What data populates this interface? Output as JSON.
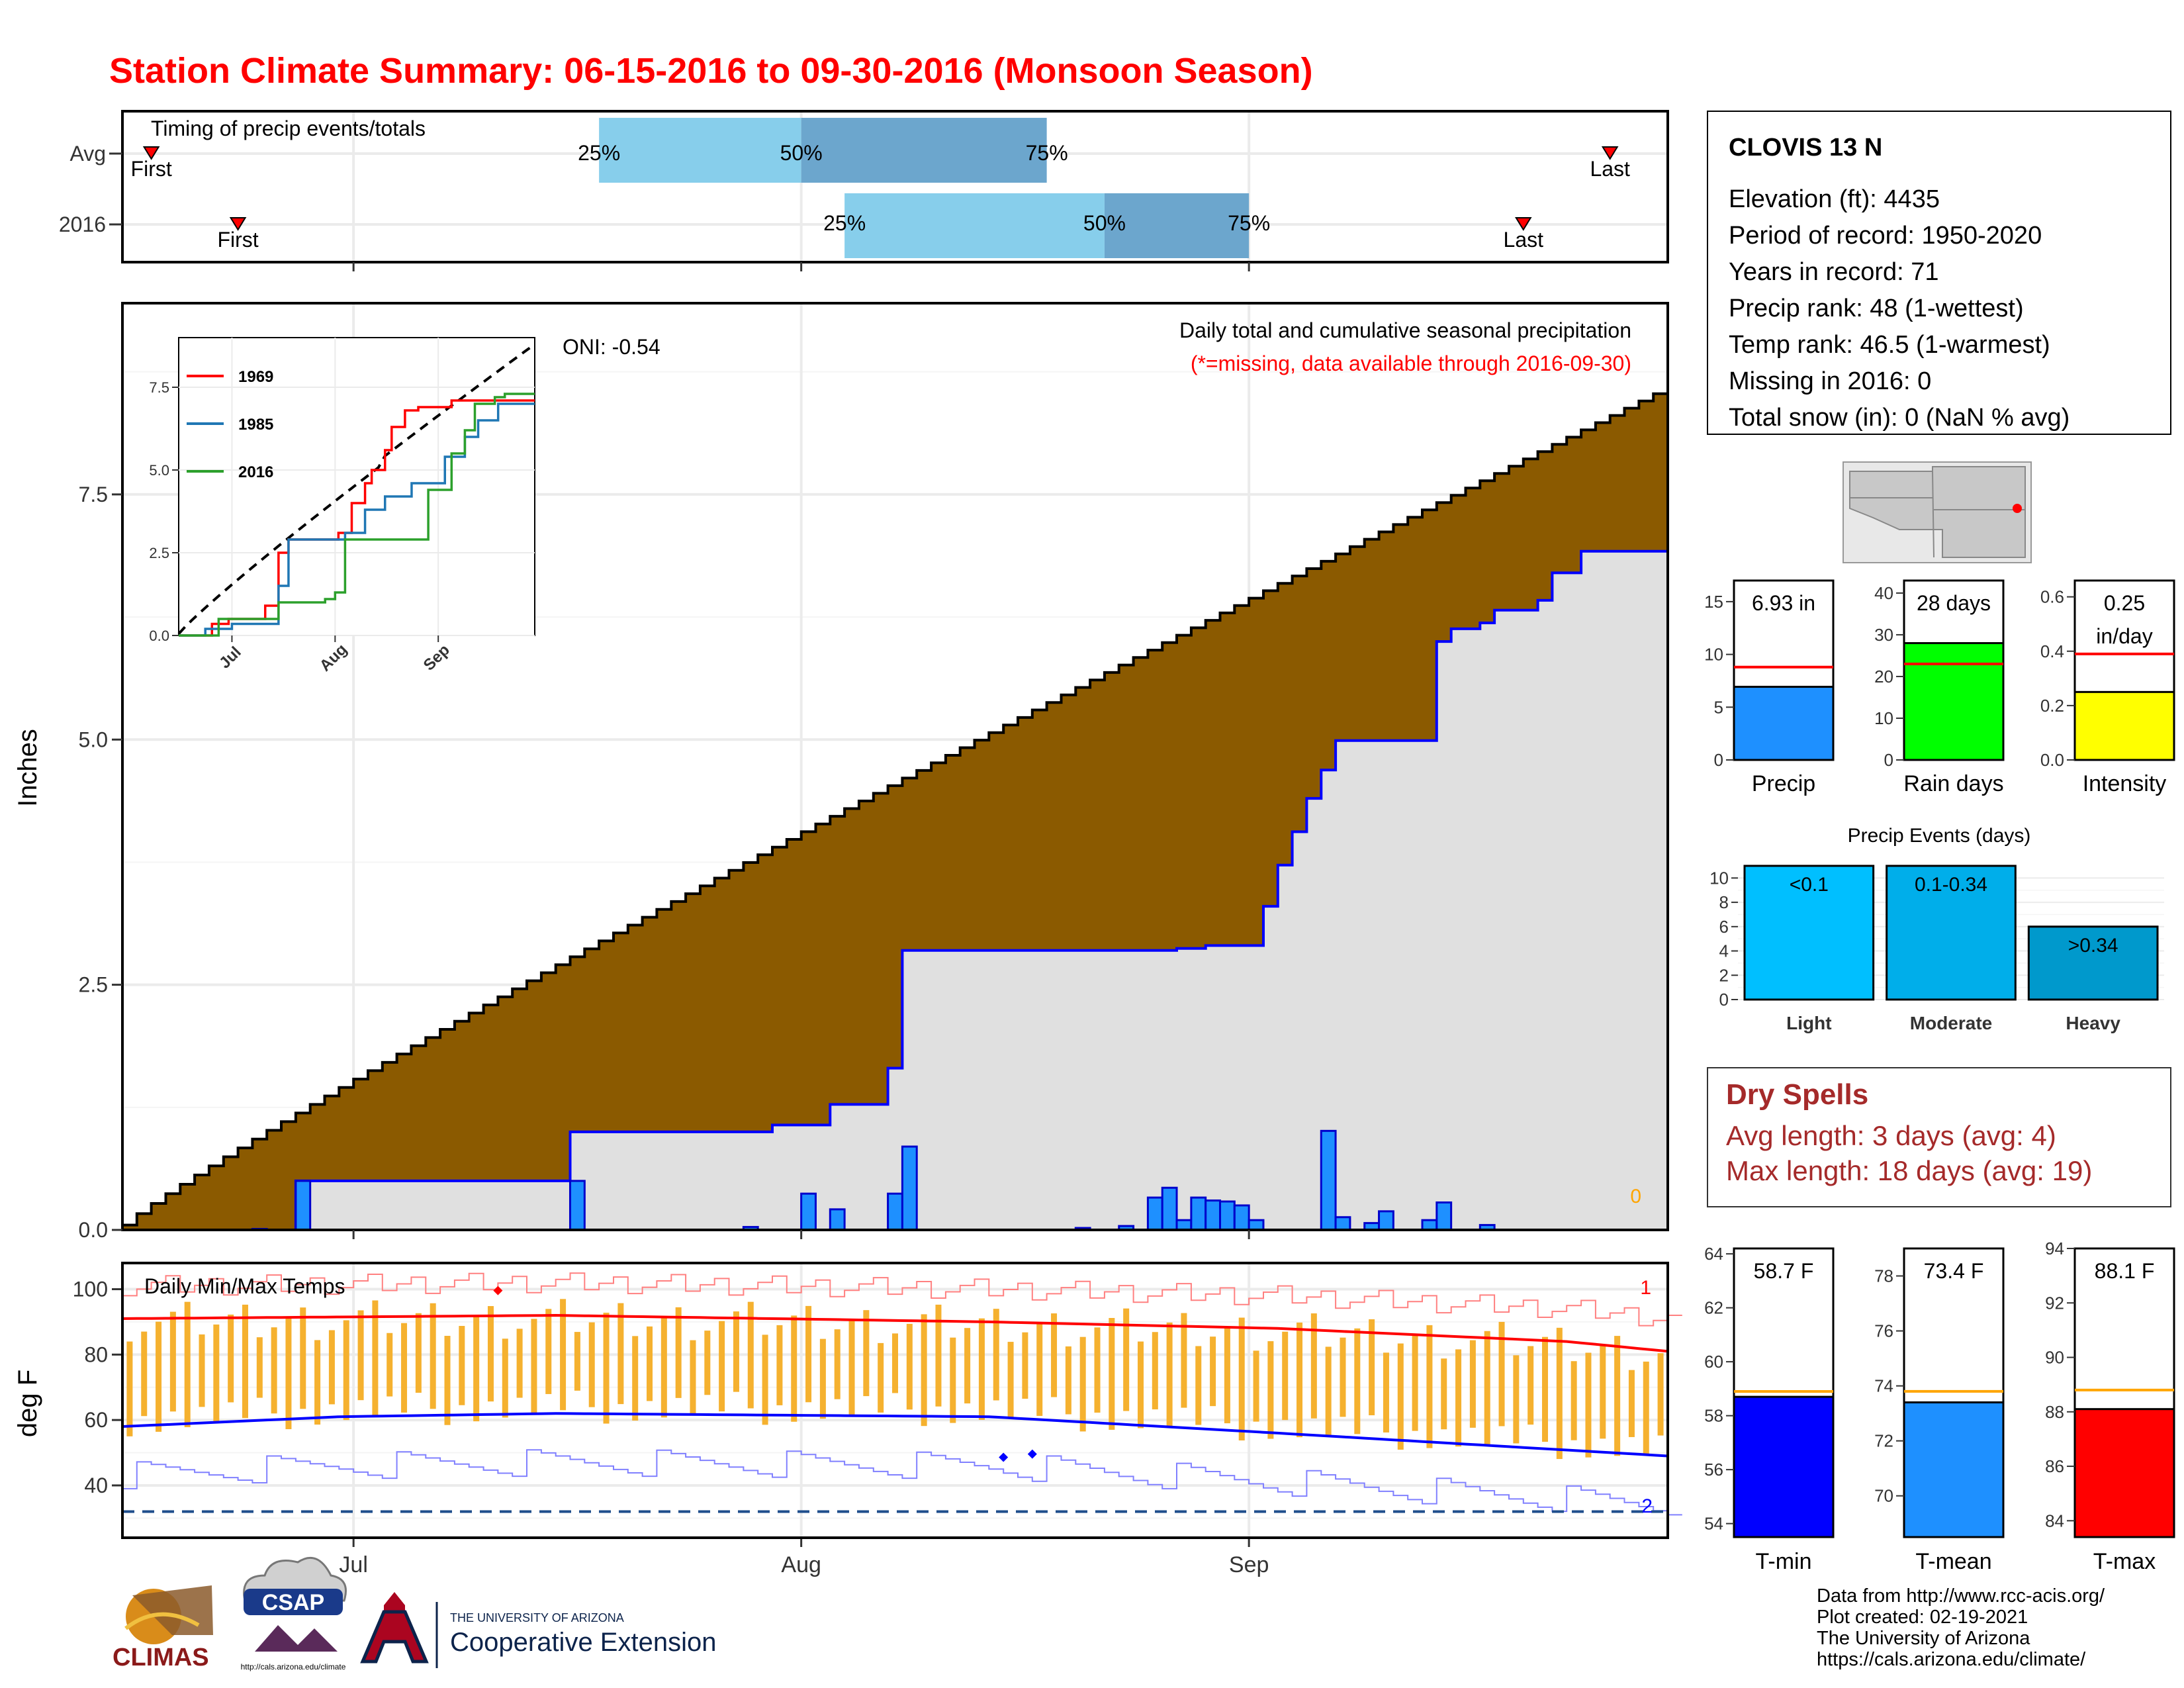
{
  "page": {
    "title": "Station Climate Summary: 06-15-2016 to 09-30-2016 (Monsoon Season)"
  },
  "colors": {
    "title": "#ff0000",
    "brown": "#8b5a00",
    "gray_fill": "#e0e0e0",
    "blue": "#0000ff",
    "bar_blue": "#1e90ff",
    "light_blue": "#87ceeb",
    "mid_blue": "#6ca6cd",
    "orange": "#f5b12f",
    "dry_red": "#a52a2a",
    "green": "#00ff00",
    "yellow": "#ffff00"
  },
  "timing": {
    "title": "Timing of precip events/totals",
    "rows": [
      {
        "label": "Avg",
        "first_label": "First",
        "last_label": "Last",
        "first_date": "2016-06-17",
        "last_date": "2016-09-26",
        "p25": "2016-07-18",
        "p50": "2016-08-01",
        "p75": "2016-08-18"
      },
      {
        "label": "2016",
        "first_label": "First",
        "last_label": "Last",
        "first_date": "2016-06-23",
        "last_date": "2016-09-20",
        "p25": "2016-08-04",
        "p50": "2016-08-22",
        "p75": "2016-09-01"
      }
    ],
    "pct_labels": [
      "25%",
      "50%",
      "75%"
    ]
  },
  "station": {
    "name": "CLOVIS 13 N",
    "lines": [
      "Elevation (ft): 4435",
      "Period of record: 1950-2020",
      "Years in record: 71",
      "Precip rank: 48 (1-wettest)",
      "Temp rank: 46.5 (1-warmest)",
      "Missing in 2016: 0",
      "Total snow (in): 0 (NaN % avg)"
    ]
  },
  "chart_data": [
    {
      "id": "main-precip",
      "type": "area",
      "ylabel": "Inches",
      "yticks": [
        "0.0",
        "2.5",
        "5.0",
        "7.5"
      ],
      "ylim": [
        0,
        9.45
      ],
      "x_range": [
        "2016-06-15",
        "2016-09-30"
      ],
      "xticks": [
        {
          "label": "Jul",
          "date": "2016-07-01"
        },
        {
          "label": "Aug",
          "date": "2016-08-01"
        },
        {
          "label": "Sep",
          "date": "2016-09-01"
        }
      ],
      "annotation_title": "Daily total and cumulative seasonal precipitation",
      "annotation_note": "(*=missing, data available through 2016-09-30)",
      "oni": "ONI: -0.54",
      "missing_count": "0",
      "avg_cumulative": {
        "start": 0.05,
        "end": 8.6
      },
      "series_2016_cumulative": [
        {
          "date": "2016-06-15",
          "value": 0.0
        },
        {
          "date": "2016-06-27",
          "value": 0.5
        },
        {
          "date": "2016-07-16",
          "value": 1.0
        },
        {
          "date": "2016-07-30",
          "value": 1.07
        },
        {
          "date": "2016-08-03",
          "value": 1.28
        },
        {
          "date": "2016-08-07",
          "value": 1.65
        },
        {
          "date": "2016-08-08",
          "value": 2.85
        },
        {
          "date": "2016-08-27",
          "value": 2.87
        },
        {
          "date": "2016-08-29",
          "value": 2.9
        },
        {
          "date": "2016-09-02",
          "value": 3.3
        },
        {
          "date": "2016-09-03",
          "value": 3.72
        },
        {
          "date": "2016-09-04",
          "value": 4.06
        },
        {
          "date": "2016-09-05",
          "value": 4.4
        },
        {
          "date": "2016-09-06",
          "value": 4.69
        },
        {
          "date": "2016-09-07",
          "value": 4.99
        },
        {
          "date": "2016-09-14",
          "value": 6.0
        },
        {
          "date": "2016-09-15",
          "value": 6.13
        },
        {
          "date": "2016-09-17",
          "value": 6.19
        },
        {
          "date": "2016-09-18",
          "value": 6.32
        },
        {
          "date": "2016-09-21",
          "value": 6.42
        },
        {
          "date": "2016-09-22",
          "value": 6.7
        },
        {
          "date": "2016-09-24",
          "value": 6.92
        },
        {
          "date": "2016-09-30",
          "value": 6.93
        }
      ],
      "daily_bars": [
        {
          "date": "2016-06-24",
          "value": 0.01
        },
        {
          "date": "2016-06-27",
          "value": 0.5
        },
        {
          "date": "2016-07-16",
          "value": 0.5
        },
        {
          "date": "2016-07-28",
          "value": 0.03
        },
        {
          "date": "2016-08-01",
          "value": 0.37
        },
        {
          "date": "2016-08-03",
          "value": 0.21
        },
        {
          "date": "2016-08-07",
          "value": 0.37
        },
        {
          "date": "2016-08-08",
          "value": 0.85
        },
        {
          "date": "2016-08-20",
          "value": 0.02
        },
        {
          "date": "2016-08-23",
          "value": 0.04
        },
        {
          "date": "2016-08-25",
          "value": 0.33
        },
        {
          "date": "2016-08-26",
          "value": 0.43
        },
        {
          "date": "2016-08-27",
          "value": 0.1
        },
        {
          "date": "2016-08-28",
          "value": 0.33
        },
        {
          "date": "2016-08-29",
          "value": 0.3
        },
        {
          "date": "2016-08-30",
          "value": 0.29
        },
        {
          "date": "2016-08-31",
          "value": 0.25
        },
        {
          "date": "2016-09-01",
          "value": 0.1
        },
        {
          "date": "2016-09-06",
          "value": 1.01
        },
        {
          "date": "2016-09-07",
          "value": 0.13
        },
        {
          "date": "2016-09-09",
          "value": 0.07
        },
        {
          "date": "2016-09-10",
          "value": 0.19
        },
        {
          "date": "2016-09-13",
          "value": 0.1
        },
        {
          "date": "2016-09-14",
          "value": 0.28
        },
        {
          "date": "2016-09-17",
          "value": 0.05
        }
      ]
    },
    {
      "id": "inset-cumulative",
      "type": "line",
      "yticks": [
        "0.0",
        "2.5",
        "5.0",
        "7.5"
      ],
      "ylim": [
        0,
        9.0
      ],
      "xticks": [
        "Jul",
        "Aug",
        "Sep"
      ],
      "series": [
        {
          "name": "1969",
          "color": "#ff0000",
          "points": [
            [
              0,
              0
            ],
            [
              10,
              0.35
            ],
            [
              15,
              0.5
            ],
            [
              26,
              0.9
            ],
            [
              30,
              2.5
            ],
            [
              33,
              2.9
            ],
            [
              48,
              3.1
            ],
            [
              52,
              4.0
            ],
            [
              56,
              4.6
            ],
            [
              58,
              5.0
            ],
            [
              62,
              5.6
            ],
            [
              64,
              6.3
            ],
            [
              68,
              6.8
            ],
            [
              72,
              6.9
            ],
            [
              82,
              7.1
            ],
            [
              107,
              7.1
            ]
          ]
        },
        {
          "name": "1985",
          "color": "#1f77b4",
          "points": [
            [
              0,
              0
            ],
            [
              8,
              0.2
            ],
            [
              16,
              0.35
            ],
            [
              30,
              1.5
            ],
            [
              33,
              2.9
            ],
            [
              50,
              3.1
            ],
            [
              56,
              3.8
            ],
            [
              62,
              4.2
            ],
            [
              70,
              4.6
            ],
            [
              80,
              5.4
            ],
            [
              86,
              6.0
            ],
            [
              90,
              6.5
            ],
            [
              96,
              7.0
            ],
            [
              107,
              7.0
            ]
          ]
        },
        {
          "name": "2016",
          "color": "#2ca02c",
          "points": [
            [
              0,
              0
            ],
            [
              12,
              0.5
            ],
            [
              30,
              1.0
            ],
            [
              44,
              1.1
            ],
            [
              47,
              1.3
            ],
            [
              50,
              2.9
            ],
            [
              70,
              2.9
            ],
            [
              75,
              4.4
            ],
            [
              82,
              5.5
            ],
            [
              86,
              6.2
            ],
            [
              89,
              7.0
            ],
            [
              95,
              7.2
            ],
            [
              98,
              7.3
            ],
            [
              107,
              7.3
            ]
          ]
        }
      ],
      "avg_line": {
        "start": 0.05,
        "end": 8.6
      }
    },
    {
      "id": "precip-totals",
      "type": "bar",
      "panels": [
        {
          "category": "Precip",
          "value": 6.93,
          "label": "6.93 in",
          "avg": 8.8,
          "ylim": [
            0,
            17
          ],
          "ticks": [
            0,
            5,
            10,
            15
          ],
          "color": "#1e90ff"
        },
        {
          "category": "Rain days",
          "value": 28,
          "label": "28 days",
          "avg": 23,
          "ylim": [
            0,
            43
          ],
          "ticks": [
            0,
            10,
            20,
            30,
            40
          ],
          "color": "#00ff00"
        },
        {
          "category": "Intensity",
          "value": 0.25,
          "label": "0.25 in/day",
          "avg": 0.39,
          "ylim": [
            0,
            0.66
          ],
          "ticks": [
            0.0,
            0.2,
            0.4,
            0.6
          ],
          "color": "#ffff00"
        }
      ]
    },
    {
      "id": "precip-events",
      "type": "bar",
      "title": "Precip Events (days)",
      "categories": [
        "Light",
        "Moderate",
        "Heavy"
      ],
      "values": [
        11,
        11,
        6
      ],
      "labels": [
        "<0.1",
        "0.1-0.34",
        ">0.34"
      ],
      "ylim": [
        0,
        11
      ],
      "yticks": [
        0,
        2,
        4,
        6,
        8,
        10
      ],
      "colors": [
        "#00bfff",
        "#00aeea",
        "#0099cc"
      ]
    },
    {
      "id": "daily-temps",
      "type": "bar",
      "title": "Daily Min/Max Temps",
      "ylabel": "deg F",
      "yticks": [
        40,
        60,
        80,
        100
      ],
      "ylim": [
        24,
        108
      ],
      "x_range": [
        "2016-06-15",
        "2016-09-30"
      ],
      "xticks": [
        "Jul",
        "Aug",
        "Sep"
      ],
      "freeze_line": 32,
      "record_high_count": "1",
      "record_low_count": "2",
      "avg_max": [
        [
          0,
          91
        ],
        [
          30,
          92
        ],
        [
          60,
          90
        ],
        [
          80,
          88
        ],
        [
          100,
          84
        ],
        [
          107,
          81
        ]
      ],
      "avg_min": [
        [
          0,
          58
        ],
        [
          15,
          61
        ],
        [
          30,
          62
        ],
        [
          60,
          61
        ],
        [
          80,
          56
        ],
        [
          107,
          49
        ]
      ]
    },
    {
      "id": "temp-summary",
      "type": "bar",
      "panels": [
        {
          "category": "T-min",
          "value": 58.7,
          "label": "58.7 F",
          "avg": 58.9,
          "ylim": [
            53.5,
            64.2
          ],
          "ticks": [
            54,
            56,
            58,
            60,
            62,
            64
          ],
          "color": "#0000ff"
        },
        {
          "category": "T-mean",
          "value": 73.4,
          "label": "73.4 F",
          "avg": 73.8,
          "ylim": [
            68.5,
            79.0
          ],
          "ticks": [
            70,
            72,
            74,
            76,
            78
          ],
          "color": "#1e90ff"
        },
        {
          "category": "T-max",
          "value": 88.1,
          "label": "88.1 F",
          "avg": 88.8,
          "ylim": [
            83.4,
            94.0
          ],
          "ticks": [
            84,
            86,
            88,
            90,
            92,
            94
          ],
          "color": "#ff0000"
        }
      ]
    }
  ],
  "dry_spells": {
    "title": "Dry Spells",
    "avg_line": "Avg length: 3 days (avg: 4)",
    "max_line": "Max length: 18 days (avg: 19)"
  },
  "credits": [
    "Data from http://www.rcc-acis.org/",
    "Plot created: 02-19-2021",
    "The University of Arizona",
    "https://cals.arizona.edu/climate/"
  ],
  "logos": {
    "climas": "CLIMAS",
    "csap": "CSAP",
    "csap_url": "http://cals.arizona.edu/climate",
    "ua_line1": "THE UNIVERSITY OF ARIZONA",
    "ua_line2": "Cooperative Extension"
  }
}
